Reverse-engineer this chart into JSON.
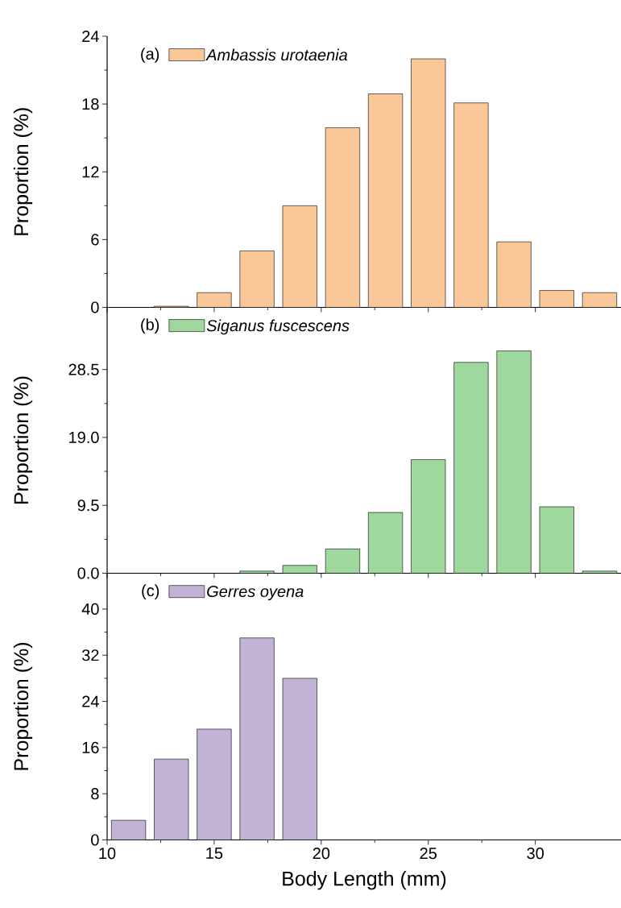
{
  "chart_data": [
    {
      "type": "histogram",
      "bins": [
        10,
        12,
        14,
        16,
        18,
        20,
        22,
        24,
        26,
        28,
        30,
        32,
        34
      ],
      "ylabel": "Proportion (%)",
      "annotations": [
        "(a)"
      ],
      "series": [
        {
          "name": "Ambassis urotaenia",
          "color": "#fac898",
          "values": [
            0,
            0.1,
            1.3,
            5.0,
            9.0,
            15.9,
            18.9,
            22.0,
            18.1,
            5.8,
            1.5,
            1.3
          ]
        }
      ],
      "xlim": [
        10,
        34
      ],
      "xticks": [
        10,
        15,
        20,
        25,
        30
      ],
      "ylim": [
        0,
        24
      ],
      "yticks": [
        0,
        6,
        12,
        18,
        24
      ],
      "tick_labels": "y",
      "legend": "top left"
    },
    {
      "type": "histogram",
      "bins": [
        10,
        12,
        14,
        16,
        18,
        20,
        22,
        24,
        26,
        28,
        30,
        32,
        34
      ],
      "ylabel": "Proportion (%)",
      "annotations": [
        "(b)"
      ],
      "series": [
        {
          "name": "Siganus fuscescens",
          "color": "#9fd89c",
          "values": [
            0,
            0,
            0,
            0.3,
            1.1,
            3.4,
            8.5,
            15.9,
            29.5,
            31.1,
            9.3,
            0.3
          ]
        }
      ],
      "xlim": [
        10,
        34
      ],
      "xticks": [
        10,
        15,
        20,
        25,
        30
      ],
      "ylim": [
        0,
        37.2
      ],
      "yticks": [
        {
          "value": 0,
          "label": "0.0"
        },
        {
          "value": 9.5,
          "label": "9.5"
        },
        {
          "value": 19,
          "label": "19.0"
        },
        {
          "value": 28.5,
          "label": "28.5"
        }
      ],
      "tick_labels": "y",
      "legend": "top left"
    },
    {
      "type": "histogram",
      "bins": [
        10,
        12,
        14,
        16,
        18,
        20,
        22,
        24,
        26,
        28,
        30,
        32,
        34
      ],
      "xlabel": "Body Length (mm)",
      "ylabel": "Proportion (%)",
      "annotations": [
        "(c)"
      ],
      "series": [
        {
          "name": "Gerres oyena",
          "color": "#c1b2d6",
          "values": [
            3.4,
            14.0,
            19.2,
            35.0,
            28.0,
            0,
            0,
            0,
            0,
            0,
            0,
            0
          ]
        }
      ],
      "xlim": [
        10,
        34
      ],
      "xticks": [
        10,
        15,
        20,
        25,
        30
      ],
      "ylim": [
        0,
        46.2
      ],
      "yticks": [
        0,
        8,
        16,
        24,
        32,
        40
      ],
      "legend": "top left"
    }
  ]
}
